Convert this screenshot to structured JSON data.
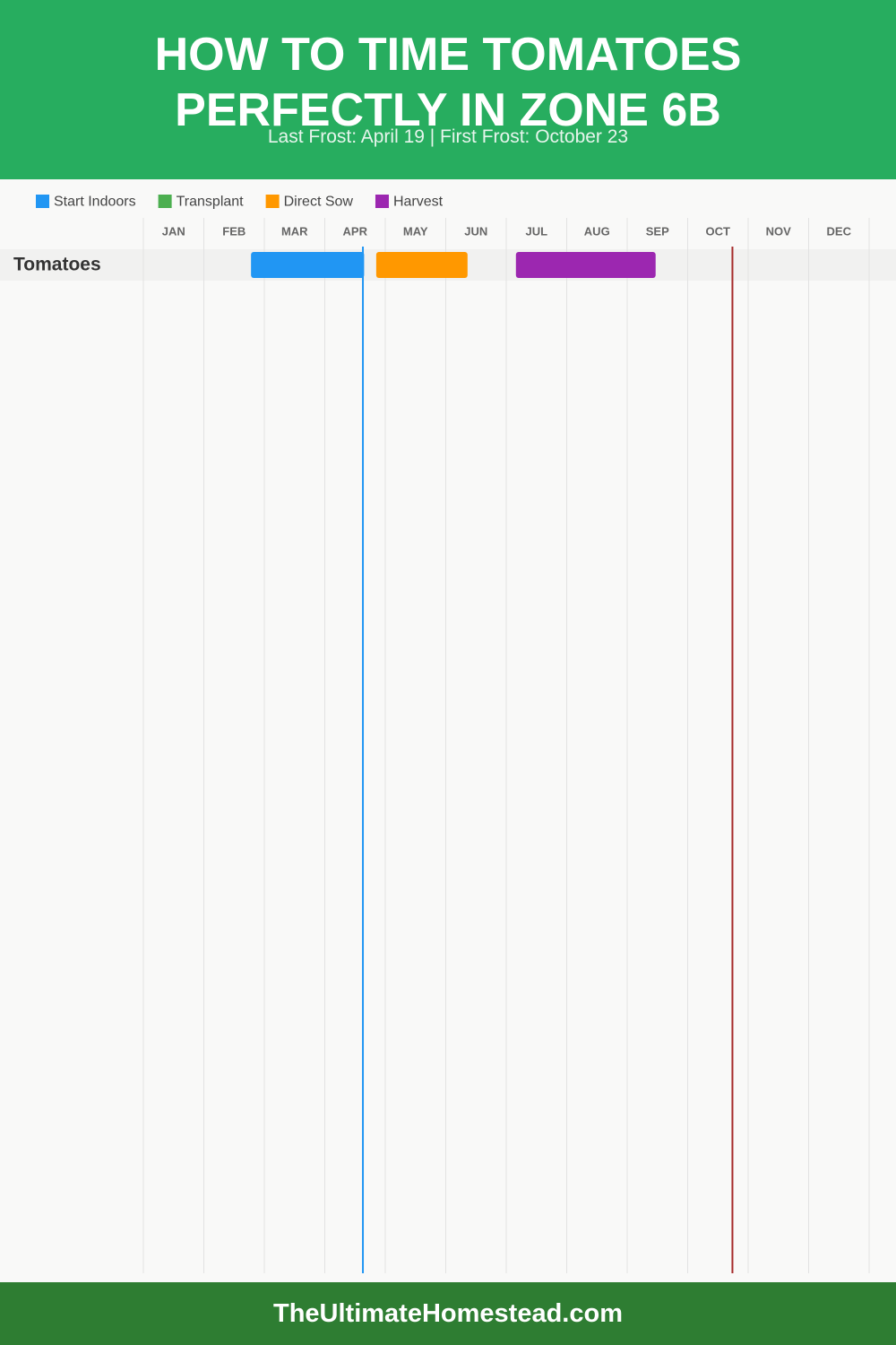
{
  "chart_data": {
    "type": "gantt",
    "title": "HOW TO TIME TOMATOES PERFECTLY IN ZONE 6B",
    "subtitle": "Last Frost: April 19 | First Frost: October 23",
    "categories": [
      "Tomatoes"
    ],
    "series": [
      {
        "name": "Start Indoors",
        "color": "#2196f3",
        "values": [
          [
            1.78,
            3.65
          ]
        ]
      },
      {
        "name": "Transplant",
        "color": "#4caf50",
        "values": [
          null
        ]
      },
      {
        "name": "Direct Sow",
        "color": "#ff9800",
        "values": [
          [
            3.85,
            5.36
          ]
        ]
      },
      {
        "name": "Harvest",
        "color": "#9c27b0",
        "values": [
          [
            6.16,
            8.47
          ]
        ]
      }
    ],
    "xlim": [
      0,
      12
    ],
    "xticks": [
      {
        "value": 0,
        "label": "JAN"
      },
      {
        "value": 1,
        "label": "FEB"
      },
      {
        "value": 2,
        "label": "MAR"
      },
      {
        "value": 3,
        "label": "APR"
      },
      {
        "value": 4,
        "label": "MAY"
      },
      {
        "value": 5,
        "label": "JUN"
      },
      {
        "value": 6,
        "label": "JUL"
      },
      {
        "value": 7,
        "label": "AUG"
      },
      {
        "value": 8,
        "label": "SEP"
      },
      {
        "value": 9,
        "label": "OCT"
      },
      {
        "value": 10,
        "label": "NOV"
      },
      {
        "value": 11,
        "label": "DEC"
      }
    ],
    "grid": true,
    "markers": [
      {
        "value": 3.63,
        "color": "#2196f3"
      },
      {
        "value": 9.74,
        "color": "#a52a2a"
      }
    ]
  },
  "footer": {
    "text": "TheUltimateHomestead.com"
  }
}
